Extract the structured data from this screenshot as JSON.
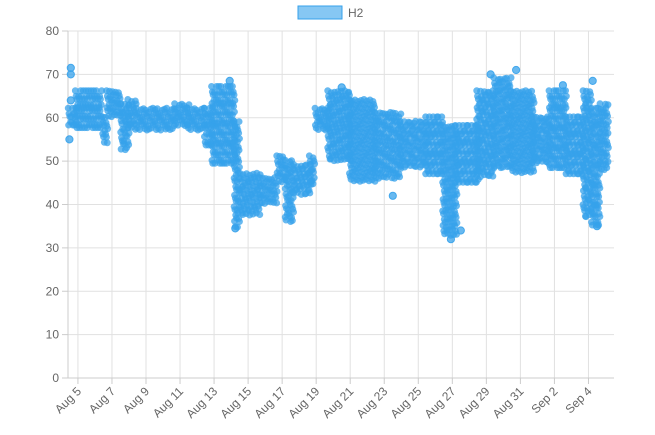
{
  "chart_data": {
    "type": "scatter",
    "legend": {
      "position": "top-center"
    },
    "grid": true,
    "ylim": [
      0,
      80
    ],
    "y_ticks": [
      0,
      10,
      20,
      30,
      40,
      50,
      60,
      70,
      80
    ],
    "xlim": [
      "2025-08-04T10:00",
      "2025-09-05T12:00"
    ],
    "x_ticks": [
      {
        "label": "Aug 5",
        "date": "2025-08-05"
      },
      {
        "label": "Aug 7",
        "date": "2025-08-07"
      },
      {
        "label": "Aug 9",
        "date": "2025-08-09"
      },
      {
        "label": "Aug 11",
        "date": "2025-08-11"
      },
      {
        "label": "Aug 13",
        "date": "2025-08-13"
      },
      {
        "label": "Aug 15",
        "date": "2025-08-15"
      },
      {
        "label": "Aug 17",
        "date": "2025-08-17"
      },
      {
        "label": "Aug 19",
        "date": "2025-08-19"
      },
      {
        "label": "Aug 21",
        "date": "2025-08-21"
      },
      {
        "label": "Aug 23",
        "date": "2025-08-23"
      },
      {
        "label": "Aug 25",
        "date": "2025-08-25"
      },
      {
        "label": "Aug 27",
        "date": "2025-08-27"
      },
      {
        "label": "Aug 29",
        "date": "2025-08-29"
      },
      {
        "label": "Aug 31",
        "date": "2025-08-31"
      },
      {
        "label": "Sep 2",
        "date": "2025-09-02"
      },
      {
        "label": "Sep 4",
        "date": "2025-09-04"
      }
    ],
    "series": [
      {
        "name": "H2",
        "color": "#36a2eb",
        "bands": [
          {
            "x": [
              "2025-08-04T12:00",
              "2025-08-04T22:00"
            ],
            "y": [
              58,
              62
            ]
          },
          {
            "x": [
              "2025-08-04T22:00",
              "2025-08-06T12:00"
            ],
            "y": [
              57,
              66
            ]
          },
          {
            "x": [
              "2025-08-06T12:00",
              "2025-08-06T18:00"
            ],
            "y": [
              54,
              60
            ]
          },
          {
            "x": [
              "2025-08-06T18:00",
              "2025-08-07T14:00"
            ],
            "y": [
              60,
              66
            ]
          },
          {
            "x": [
              "2025-08-07T14:00",
              "2025-08-08T00:00"
            ],
            "y": [
              52,
              63
            ]
          },
          {
            "x": [
              "2025-08-08T00:00",
              "2025-08-08T12:00"
            ],
            "y": [
              57,
              64
            ]
          },
          {
            "x": [
              "2025-08-08T12:00",
              "2025-08-10T18:00"
            ],
            "y": [
              57,
              62
            ]
          },
          {
            "x": [
              "2025-08-10T18:00",
              "2025-08-11T12:00"
            ],
            "y": [
              58,
              63
            ]
          },
          {
            "x": [
              "2025-08-11T12:00",
              "2025-08-12T12:00"
            ],
            "y": [
              57,
              62
            ]
          },
          {
            "x": [
              "2025-08-12T12:00",
              "2025-08-12T22:00"
            ],
            "y": [
              53,
              62
            ]
          },
          {
            "x": [
              "2025-08-12T22:00",
              "2025-08-14T06:00"
            ],
            "y": [
              49,
              67
            ]
          },
          {
            "x": [
              "2025-08-14T06:00",
              "2025-08-14T14:00"
            ],
            "y": [
              35,
              59
            ]
          },
          {
            "x": [
              "2025-08-14T14:00",
              "2025-08-15T18:00"
            ],
            "y": [
              37,
              47
            ]
          },
          {
            "x": [
              "2025-08-15T18:00",
              "2025-08-16T18:00"
            ],
            "y": [
              40,
              46
            ]
          },
          {
            "x": [
              "2025-08-16T18:00",
              "2025-08-17T06:00"
            ],
            "y": [
              45,
              51
            ]
          },
          {
            "x": [
              "2025-08-17T06:00",
              "2025-08-17T18:00"
            ],
            "y": [
              36,
              50
            ]
          },
          {
            "x": [
              "2025-08-17T18:00",
              "2025-08-18T16:00"
            ],
            "y": [
              42,
              49
            ]
          },
          {
            "x": [
              "2025-08-18T16:00",
              "2025-08-19T00:00"
            ],
            "y": [
              44,
              51
            ]
          },
          {
            "x": [
              "2025-08-19T00:00",
              "2025-08-19T18:00"
            ],
            "y": [
              57,
              62
            ]
          },
          {
            "x": [
              "2025-08-19T18:00",
              "2025-08-21T00:00"
            ],
            "y": [
              50,
              66
            ]
          },
          {
            "x": [
              "2025-08-21T00:00",
              "2025-08-22T12:00"
            ],
            "y": [
              45,
              64
            ]
          },
          {
            "x": [
              "2025-08-22T12:00",
              "2025-08-24T00:00"
            ],
            "y": [
              46,
              61
            ]
          },
          {
            "x": [
              "2025-08-24T00:00",
              "2025-08-25T12:00"
            ],
            "y": [
              48,
              59
            ]
          },
          {
            "x": [
              "2025-08-25T12:00",
              "2025-08-26T12:00"
            ],
            "y": [
              47,
              60
            ]
          },
          {
            "x": [
              "2025-08-26T12:00",
              "2025-08-27T06:00"
            ],
            "y": [
              33,
              58
            ]
          },
          {
            "x": [
              "2025-08-27T06:00",
              "2025-08-28T12:00"
            ],
            "y": [
              45,
              58
            ]
          },
          {
            "x": [
              "2025-08-28T12:00",
              "2025-08-29T12:00"
            ],
            "y": [
              46,
              66
            ]
          },
          {
            "x": [
              "2025-08-29T12:00",
              "2025-08-30T12:00"
            ],
            "y": [
              48,
              69
            ]
          },
          {
            "x": [
              "2025-08-30T12:00",
              "2025-08-31T18:00"
            ],
            "y": [
              47,
              66
            ]
          },
          {
            "x": [
              "2025-08-31T18:00",
              "2025-09-01T18:00"
            ],
            "y": [
              49,
              60
            ]
          },
          {
            "x": [
              "2025-09-01T18:00",
              "2025-09-02T18:00"
            ],
            "y": [
              48,
              66
            ]
          },
          {
            "x": [
              "2025-09-02T18:00",
              "2025-09-03T18:00"
            ],
            "y": [
              47,
              60
            ]
          },
          {
            "x": [
              "2025-09-03T18:00",
              "2025-09-04T06:00"
            ],
            "y": [
              37,
              66
            ]
          },
          {
            "x": [
              "2025-09-04T06:00",
              "2025-09-04T18:00"
            ],
            "y": [
              35,
              62
            ]
          },
          {
            "x": [
              "2025-09-04T18:00",
              "2025-09-05T06:00"
            ],
            "y": [
              48,
              63
            ]
          }
        ],
        "points": [
          {
            "x": "2025-08-04T14:00",
            "y": 71.5
          },
          {
            "x": "2025-08-04T14:00",
            "y": 70
          },
          {
            "x": "2025-08-04T14:00",
            "y": 64
          },
          {
            "x": "2025-08-04T12:00",
            "y": 55
          },
          {
            "x": "2025-08-13T22:00",
            "y": 68.5
          },
          {
            "x": "2025-08-14T06:00",
            "y": 34.5
          },
          {
            "x": "2025-08-23T12:00",
            "y": 42
          },
          {
            "x": "2025-08-26T22:00",
            "y": 32
          },
          {
            "x": "2025-08-27T12:00",
            "y": 34
          },
          {
            "x": "2025-08-29T06:00",
            "y": 70
          },
          {
            "x": "2025-08-30T18:00",
            "y": 71
          },
          {
            "x": "2025-09-04T06:00",
            "y": 68.5
          },
          {
            "x": "2025-09-04T12:00",
            "y": 35
          },
          {
            "x": "2025-09-02T12:00",
            "y": 67.5
          },
          {
            "x": "2025-08-20T12:00",
            "y": 67
          }
        ]
      }
    ]
  }
}
